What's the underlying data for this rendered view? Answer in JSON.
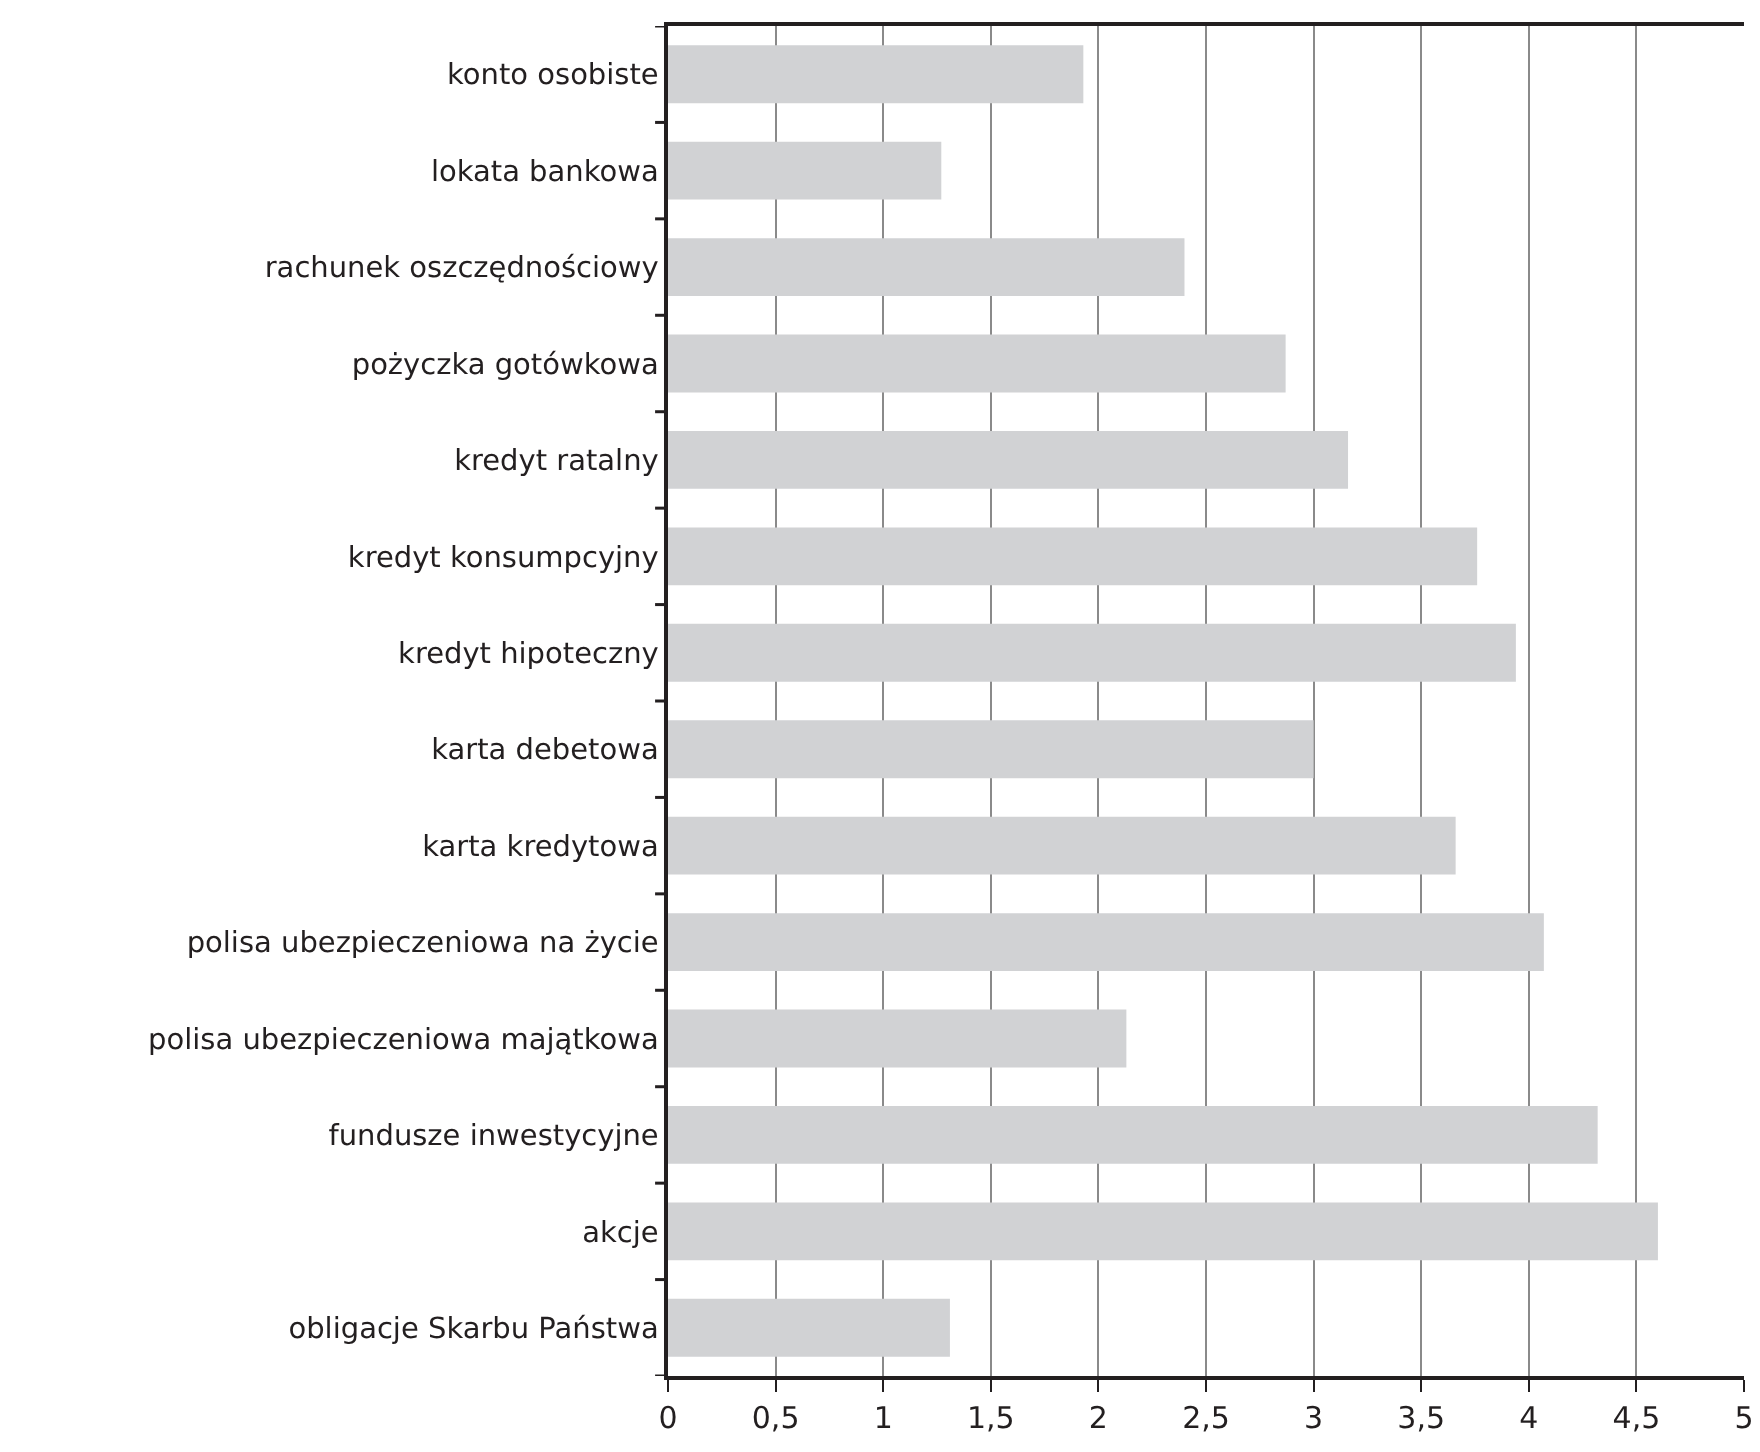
{
  "chart_data": {
    "type": "bar",
    "orientation": "horizontal",
    "categories": [
      "konto osobiste",
      "lokata bankowa",
      "rachunek oszczędnościowy",
      "pożyczka gotówkowa",
      "kredyt ratalny",
      "kredyt konsumpcyjny",
      "kredyt hipoteczny",
      "karta debetowa",
      "karta kredytowa",
      "polisa ubezpieczeniowa na życie",
      "polisa ubezpieczeniowa majątkowa",
      "fundusze inwestycyjne",
      "akcje",
      "obligacje Skarbu Państwa"
    ],
    "values": [
      1.93,
      1.27,
      2.4,
      2.87,
      3.16,
      3.76,
      3.94,
      3.0,
      3.66,
      4.07,
      2.13,
      4.32,
      4.6,
      1.31
    ],
    "color": "#d1d2d4",
    "xlim": [
      0,
      5
    ],
    "xticks": [
      0,
      {
        "value": 0.5,
        "label": "0,5"
      },
      1,
      {
        "value": 1.5,
        "label": "1,5"
      },
      2,
      {
        "value": 2.5,
        "label": "2,5"
      },
      3,
      {
        "value": 3.5,
        "label": "3,5"
      },
      4,
      {
        "value": 4.5,
        "label": "4,5"
      },
      5
    ],
    "grid": "x",
    "legend": false
  }
}
